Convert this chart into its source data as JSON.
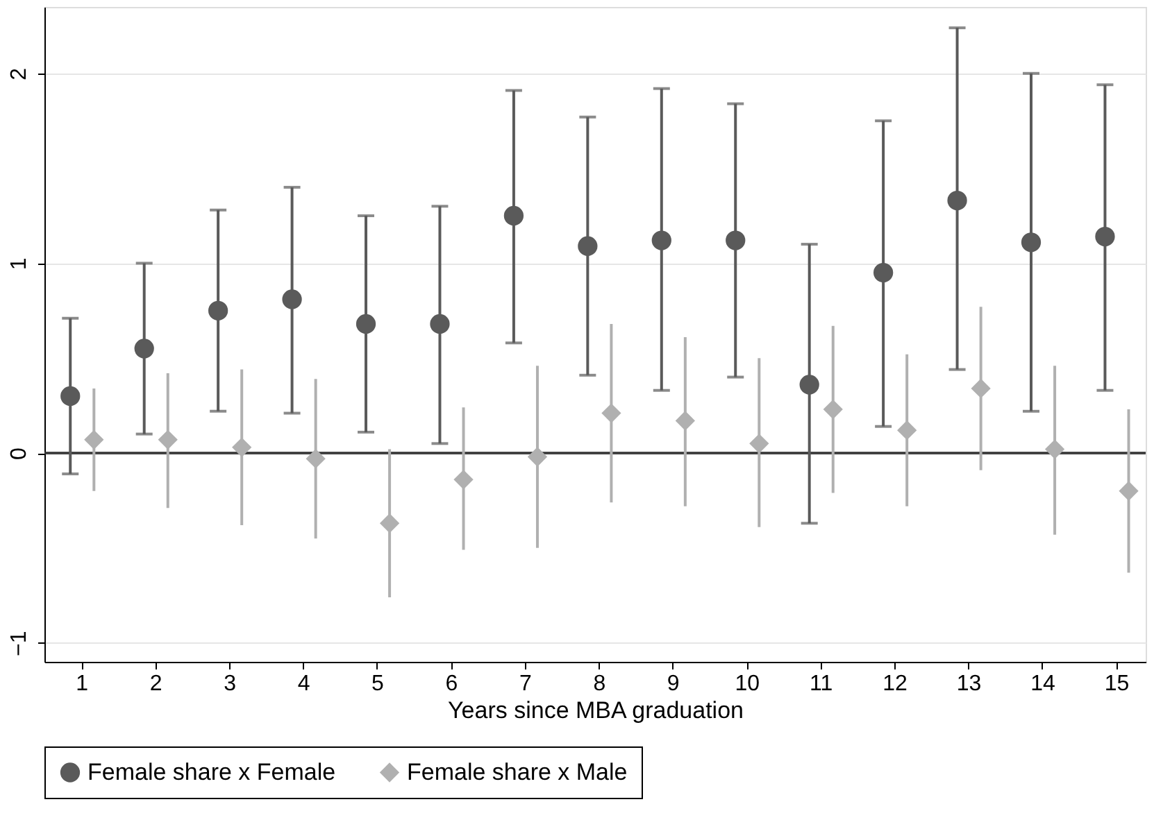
{
  "chart_data": {
    "type": "scatter",
    "xlabel": "Years since MBA graduation",
    "xlim": [
      0.5,
      15.4
    ],
    "xticks": [
      1,
      2,
      3,
      4,
      5,
      6,
      7,
      8,
      9,
      10,
      11,
      12,
      13,
      14,
      15
    ],
    "ylim": [
      -1.1,
      2.35
    ],
    "yticks": [
      -1,
      0,
      1,
      2
    ],
    "grid": "y",
    "legend": "bottom",
    "ref_lines": [
      {
        "axis": "y",
        "value": 0,
        "color": "#333333"
      }
    ],
    "series": [
      {
        "name": "Female share x Female",
        "color": "#5a5a5a",
        "marker": "circle",
        "x": [
          0.85,
          1.85,
          2.85,
          3.85,
          4.85,
          5.85,
          6.85,
          7.85,
          8.85,
          9.85,
          10.85,
          11.85,
          12.85,
          13.85,
          14.85
        ],
        "values": [
          0.3,
          0.55,
          0.75,
          0.81,
          0.68,
          0.68,
          1.25,
          1.09,
          1.12,
          1.12,
          0.36,
          0.95,
          1.33,
          1.11,
          1.14
        ],
        "errors": [
          [
            -0.11,
            0.71
          ],
          [
            0.1,
            1.0
          ],
          [
            0.22,
            1.28
          ],
          [
            0.21,
            1.4
          ],
          [
            0.11,
            1.25
          ],
          [
            0.05,
            1.3
          ],
          [
            0.58,
            1.91
          ],
          [
            0.41,
            1.77
          ],
          [
            0.33,
            1.92
          ],
          [
            0.4,
            1.84
          ],
          [
            -0.37,
            1.1
          ],
          [
            0.14,
            1.75
          ],
          [
            0.44,
            2.24
          ],
          [
            0.22,
            2.0
          ],
          [
            0.33,
            1.94
          ]
        ]
      },
      {
        "name": "Female share x Male",
        "color": "#b0b0b0",
        "marker": "diamond",
        "x": [
          1.17,
          2.17,
          3.17,
          4.17,
          5.17,
          6.17,
          7.17,
          8.17,
          9.17,
          10.17,
          11.17,
          12.17,
          13.17,
          14.17,
          15.17
        ],
        "values": [
          0.07,
          0.07,
          0.03,
          -0.03,
          -0.37,
          -0.14,
          -0.02,
          0.21,
          0.17,
          0.05,
          0.23,
          0.12,
          0.34,
          0.02,
          -0.2
        ],
        "errors": [
          [
            -0.2,
            0.34
          ],
          [
            -0.29,
            0.42
          ],
          [
            -0.38,
            0.44
          ],
          [
            -0.45,
            0.39
          ],
          [
            -0.76,
            0.02
          ],
          [
            -0.51,
            0.24
          ],
          [
            -0.5,
            0.46
          ],
          [
            -0.26,
            0.68
          ],
          [
            -0.28,
            0.61
          ],
          [
            -0.39,
            0.5
          ],
          [
            -0.21,
            0.67
          ],
          [
            -0.28,
            0.52
          ],
          [
            -0.09,
            0.77
          ],
          [
            -0.43,
            0.46
          ],
          [
            -0.63,
            0.23
          ]
        ]
      }
    ]
  }
}
